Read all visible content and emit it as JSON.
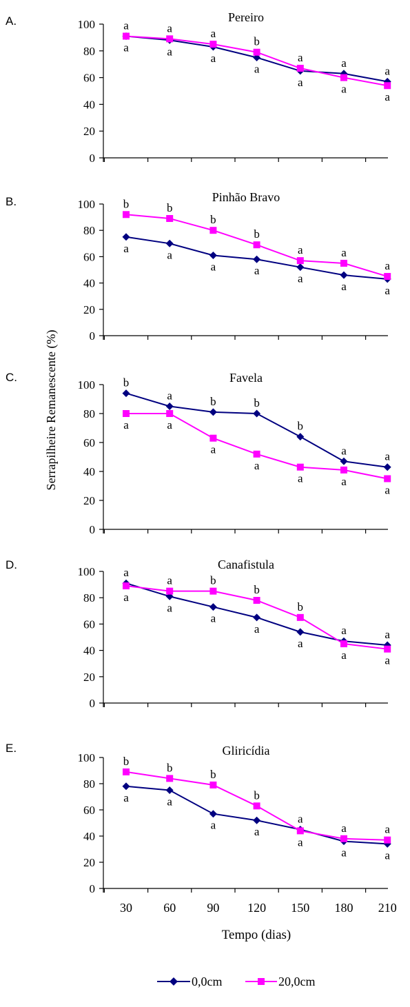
{
  "figure": {
    "ylabel": "Serrapilheire Remanescente (%)",
    "xlabel": "Tempo (dias)",
    "legend": [
      "0,0cm",
      "20,0cm"
    ],
    "colors": {
      "0,0cm": "#000080",
      "20,0cm": "#ff00ff"
    }
  },
  "chart_data": [
    {
      "type": "line",
      "panel_label": "A.",
      "title": "Pereiro",
      "x": [
        30,
        60,
        90,
        120,
        150,
        180,
        210
      ],
      "ylim": [
        0,
        100
      ],
      "yticks": [
        0,
        20,
        40,
        60,
        80,
        100
      ],
      "series": [
        {
          "name": "0,0cm",
          "values": [
            91,
            88,
            83,
            75,
            65,
            63,
            57
          ],
          "letters": [
            "a",
            "a",
            "a",
            "a",
            "a",
            "a",
            "a"
          ]
        },
        {
          "name": "20,0cm",
          "values": [
            91,
            89,
            85,
            79,
            67,
            60,
            54
          ],
          "letters": [
            "a",
            "a",
            "a",
            "b",
            "a",
            "a",
            "a"
          ]
        }
      ]
    },
    {
      "type": "line",
      "panel_label": "B.",
      "title": "Pinhão Bravo",
      "x": [
        30,
        60,
        90,
        120,
        150,
        180,
        210
      ],
      "ylim": [
        0,
        100
      ],
      "yticks": [
        0,
        20,
        40,
        60,
        80,
        100
      ],
      "series": [
        {
          "name": "0,0cm",
          "values": [
            75,
            70,
            61,
            58,
            52,
            46,
            43
          ],
          "letters": [
            "a",
            "a",
            "a",
            "a",
            "a",
            "a",
            "a"
          ]
        },
        {
          "name": "20,0cm",
          "values": [
            92,
            89,
            80,
            69,
            57,
            55,
            45
          ],
          "letters": [
            "b",
            "b",
            "b",
            "b",
            "a",
            "a",
            "a"
          ]
        }
      ]
    },
    {
      "type": "line",
      "panel_label": "C.",
      "title": "Favela",
      "x": [
        30,
        60,
        90,
        120,
        150,
        180,
        210
      ],
      "ylim": [
        0,
        100
      ],
      "yticks": [
        0,
        20,
        40,
        60,
        80,
        100
      ],
      "series": [
        {
          "name": "0,0cm",
          "values": [
            94,
            85,
            81,
            80,
            64,
            47,
            43
          ],
          "letters": [
            "b",
            "a",
            "b",
            "b",
            "b",
            "a",
            "a"
          ]
        },
        {
          "name": "20,0cm",
          "values": [
            80,
            80,
            63,
            52,
            43,
            41,
            35
          ],
          "letters": [
            "a",
            "a",
            "a",
            "a",
            "a",
            "a",
            "a"
          ]
        }
      ]
    },
    {
      "type": "line",
      "panel_label": "D.",
      "title": "Canafistula",
      "x": [
        30,
        60,
        90,
        120,
        150,
        180,
        210
      ],
      "ylim": [
        0,
        100
      ],
      "yticks": [
        0,
        20,
        40,
        60,
        80,
        100
      ],
      "series": [
        {
          "name": "0,0cm",
          "values": [
            91,
            81,
            73,
            65,
            54,
            47,
            44
          ],
          "letters": [
            "a",
            "a",
            "a",
            "a",
            "a",
            "a",
            "a"
          ]
        },
        {
          "name": "20,0cm",
          "values": [
            89,
            85,
            85,
            78,
            65,
            45,
            41
          ],
          "letters": [
            "a",
            "a",
            "b",
            "b",
            "b",
            "a",
            "a"
          ]
        }
      ]
    },
    {
      "type": "line",
      "panel_label": "E.",
      "title": "Gliricídia",
      "x": [
        30,
        60,
        90,
        120,
        150,
        180,
        210
      ],
      "ylim": [
        0,
        100
      ],
      "yticks": [
        0,
        20,
        40,
        60,
        80,
        100
      ],
      "series": [
        {
          "name": "0,0cm",
          "values": [
            78,
            75,
            57,
            52,
            45,
            36,
            34
          ],
          "letters": [
            "a",
            "a",
            "a",
            "a",
            "a",
            "a",
            "a"
          ]
        },
        {
          "name": "20,0cm",
          "values": [
            89,
            84,
            79,
            63,
            44,
            38,
            37
          ],
          "letters": [
            "b",
            "b",
            "b",
            "b",
            "a",
            "a",
            "a"
          ]
        }
      ]
    }
  ]
}
